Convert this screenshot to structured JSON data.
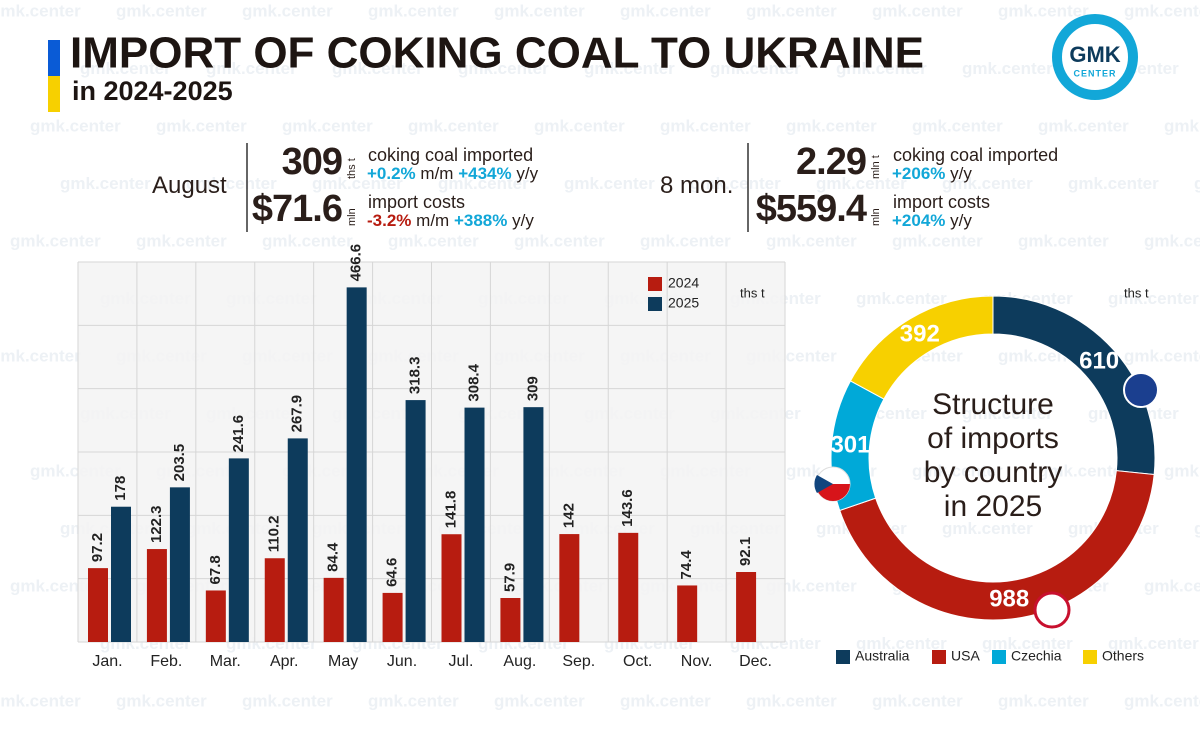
{
  "header": {
    "title": "IMPORT OF COKING COAL TO UKRAINE",
    "subtitle": "in 2024-2025"
  },
  "logo": {
    "name": "GMK",
    "sub": "CENTER"
  },
  "watermark": "gmk.center",
  "stats": [
    {
      "period": "August",
      "volume": {
        "value": "309",
        "unit": "ths t",
        "label": "coking coal imported",
        "changes": [
          {
            "value": "+0.2%",
            "unit": "m/m"
          },
          {
            "value": "+434%",
            "unit": "y/y"
          }
        ]
      },
      "cost": {
        "value": "$71.6",
        "unit": "mln",
        "label": "import costs",
        "changes": [
          {
            "value": "-3.2%",
            "unit": "m/m"
          },
          {
            "value": "+388%",
            "unit": "y/y"
          }
        ]
      }
    },
    {
      "period": "8 mon.",
      "volume": {
        "value": "2.29",
        "unit": "mln t",
        "label": "coking coal imported",
        "changes": [
          {
            "value": "+206%",
            "unit": "y/y"
          }
        ]
      },
      "cost": {
        "value": "$559.4",
        "unit": "mln",
        "label": "import costs",
        "changes": [
          {
            "value": "+204%",
            "unit": "y/y"
          }
        ]
      }
    }
  ],
  "chart_data": [
    {
      "type": "bar",
      "unit": "ths t",
      "categories": [
        "Jan.",
        "Feb.",
        "Mar.",
        "Apr.",
        "May",
        "Jun.",
        "Jul.",
        "Aug.",
        "Sep.",
        "Oct.",
        "Nov.",
        "Dec."
      ],
      "series": [
        {
          "name": "2024",
          "color": "#b71c10",
          "values": [
            97.2,
            122.3,
            67.8,
            110.2,
            84.4,
            64.6,
            141.8,
            57.9,
            142,
            143.6,
            74.4,
            92.1
          ]
        },
        {
          "name": "2025",
          "color": "#0d3b5c",
          "values": [
            178,
            203.5,
            241.6,
            267.9,
            466.6,
            318.3,
            308.4,
            309,
            null,
            null,
            null,
            null
          ]
        }
      ],
      "ylim": [
        0,
        500
      ],
      "grid": true,
      "legend": "top-right"
    },
    {
      "type": "pie",
      "unit": "ths t",
      "center_text": [
        "Structure",
        "of imports",
        "by country",
        "in 2025"
      ],
      "categories": [
        "Australia",
        "USA",
        "Czechia",
        "Others"
      ],
      "values": [
        610,
        988,
        301,
        392
      ],
      "colors": [
        "#0d3b5c",
        "#b71c10",
        "#00a9d8",
        "#f7d000"
      ],
      "legend": "bottom"
    }
  ]
}
